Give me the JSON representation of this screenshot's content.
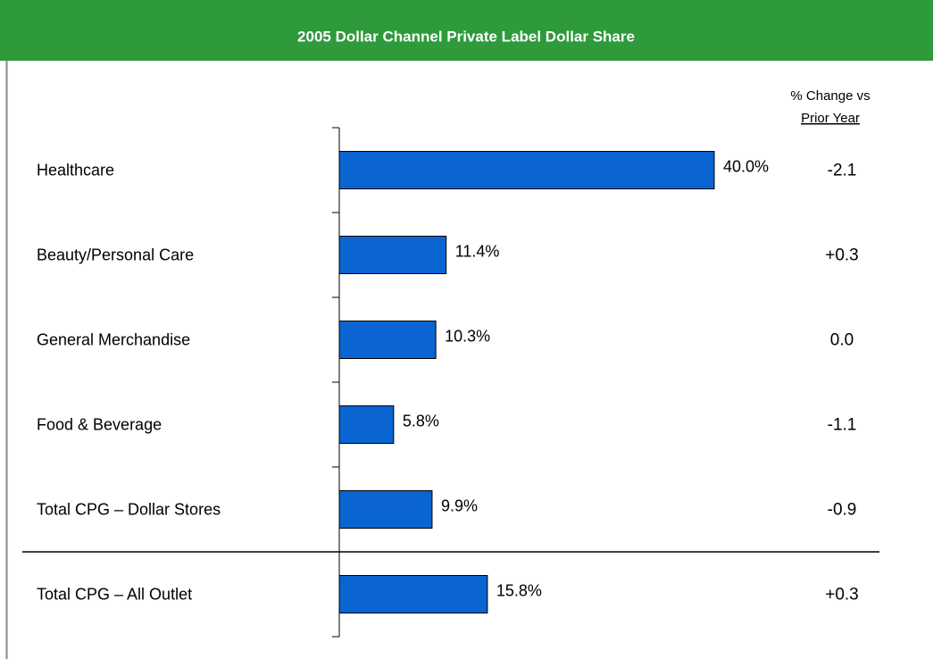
{
  "chart_data": {
    "type": "bar",
    "title": "2005 Dollar Channel Private Label Dollar Share",
    "categories": [
      "Healthcare",
      "Beauty/Personal Care",
      "General Merchandise",
      "Food & Beverage",
      "Total CPG – Dollar Stores",
      "Total CPG – All Outlet"
    ],
    "values": [
      40.0,
      11.4,
      10.3,
      5.8,
      9.9,
      15.8
    ],
    "value_labels": [
      "40.0%",
      "11.4%",
      "10.3%",
      "5.8%",
      "9.9%",
      "15.8%"
    ],
    "color": "#0a64d2",
    "xlim": [
      0,
      40
    ],
    "change_header": [
      "% Change vs",
      "Prior Year"
    ],
    "change": [
      "-2.1",
      "+0.3",
      "0.0",
      "-1.1",
      "-0.9",
      "+0.3"
    ]
  }
}
